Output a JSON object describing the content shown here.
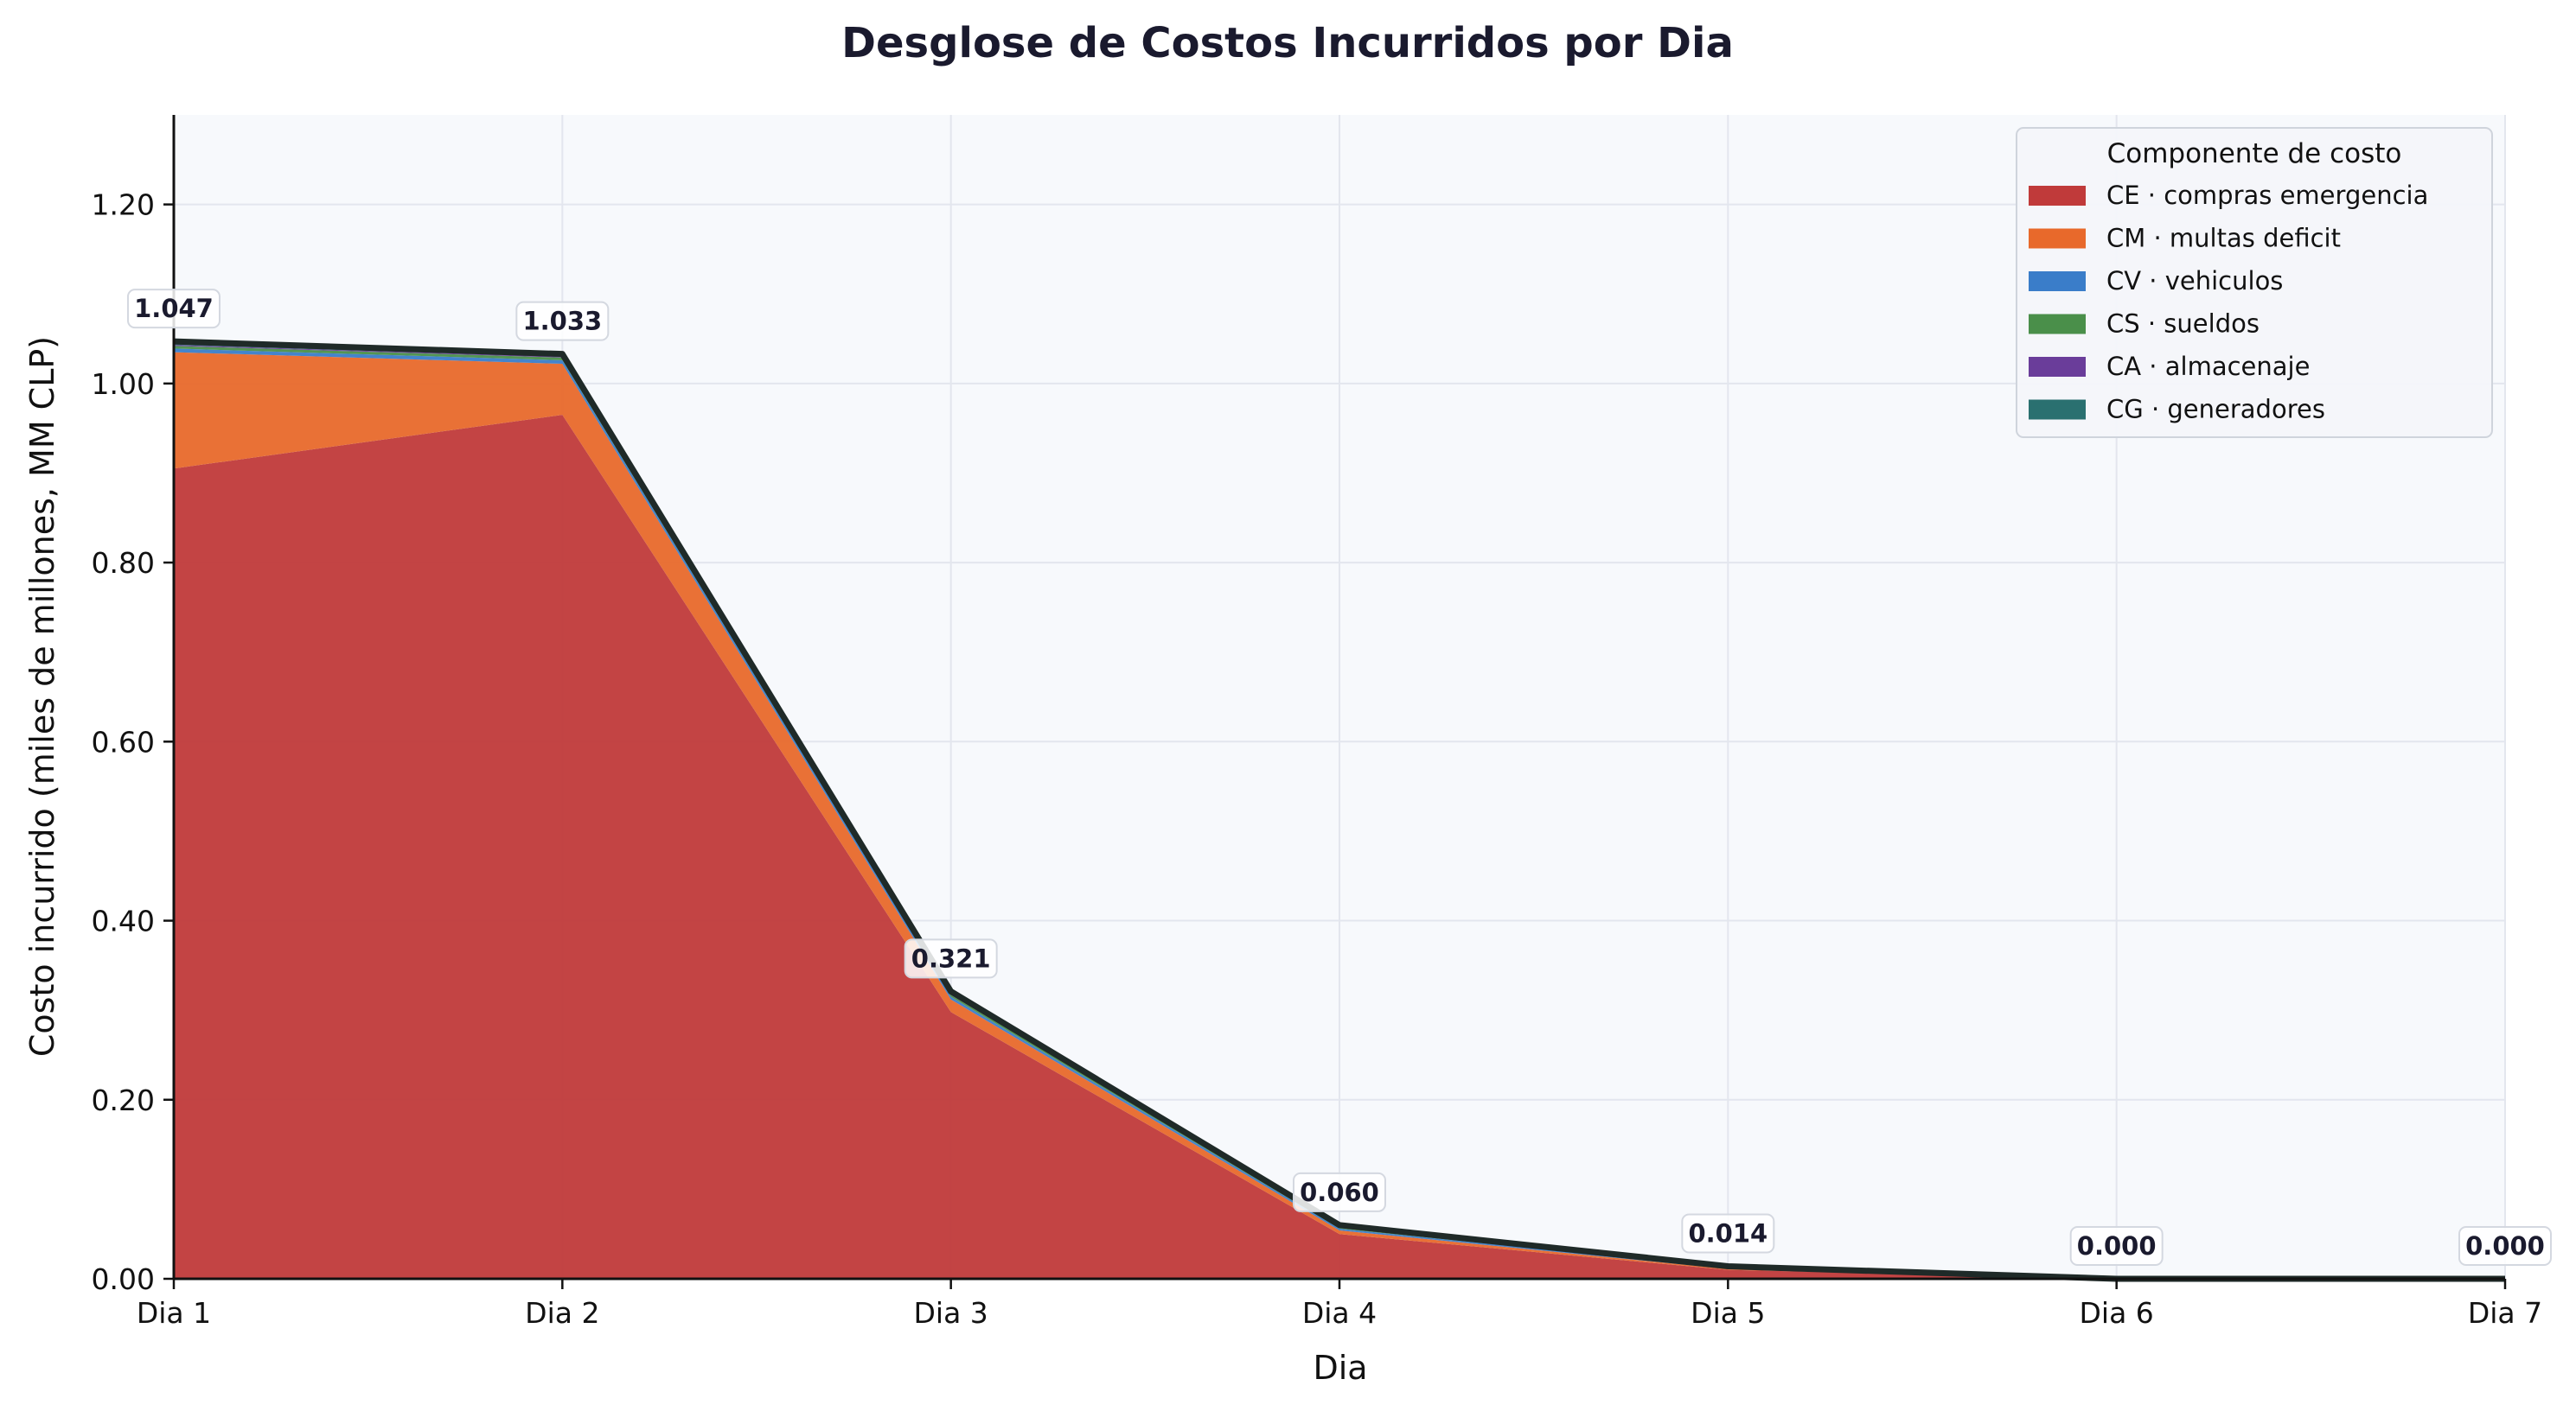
{
  "chart_data": {
    "type": "area",
    "stacked": true,
    "title": "Desglose de Costos Incurridos por Dia",
    "xlabel": "Dia",
    "ylabel": "Costo incurrido (miles de millones, MM CLP)",
    "categories": [
      "Dia 1",
      "Dia 2",
      "Dia 3",
      "Dia 4",
      "Dia 5",
      "Dia 6",
      "Dia 7"
    ],
    "ylim": [
      0,
      1.3
    ],
    "yticks": [
      0.0,
      0.2,
      0.4,
      0.6,
      0.8,
      1.0,
      1.2
    ],
    "ytick_labels": [
      "0.00",
      "0.20",
      "0.40",
      "0.60",
      "0.80",
      "1.00",
      "1.20"
    ],
    "grid": true,
    "legend": {
      "title": "Componente de costo",
      "placement": "top-right"
    },
    "series": [
      {
        "name": "CE · compras emergencia",
        "color": "#c03a3a",
        "values": [
          0.905,
          0.965,
          0.298,
          0.05,
          0.01,
          0.0,
          0.0
        ]
      },
      {
        "name": "CM · multas deficit",
        "color": "#e8692b",
        "values": [
          0.13,
          0.057,
          0.014,
          0.004,
          0.001,
          0.0,
          0.0
        ]
      },
      {
        "name": "CV · vehiculos",
        "color": "#3a7dc9",
        "values": [
          0.004,
          0.004,
          0.003,
          0.002,
          0.001,
          0.0,
          0.0
        ]
      },
      {
        "name": "CS · sueldos",
        "color": "#4a8f4a",
        "values": [
          0.003,
          0.003,
          0.002,
          0.002,
          0.001,
          0.0,
          0.0
        ]
      },
      {
        "name": "CA · almacenaje",
        "color": "#6a3d9a",
        "values": [
          0.001,
          0.001,
          0.001,
          0.001,
          0.0,
          0.0,
          0.0
        ]
      },
      {
        "name": "CG · generadores",
        "color": "#2a7070",
        "values": [
          0.004,
          0.003,
          0.003,
          0.001,
          0.001,
          0.0,
          0.0
        ]
      }
    ],
    "totals": [
      1.047,
      1.033,
      0.321,
      0.06,
      0.014,
      0.0,
      0.0
    ],
    "total_labels": [
      "1.047",
      "1.033",
      "0.321",
      "0.060",
      "0.014",
      "0.000",
      "0.000"
    ]
  }
}
